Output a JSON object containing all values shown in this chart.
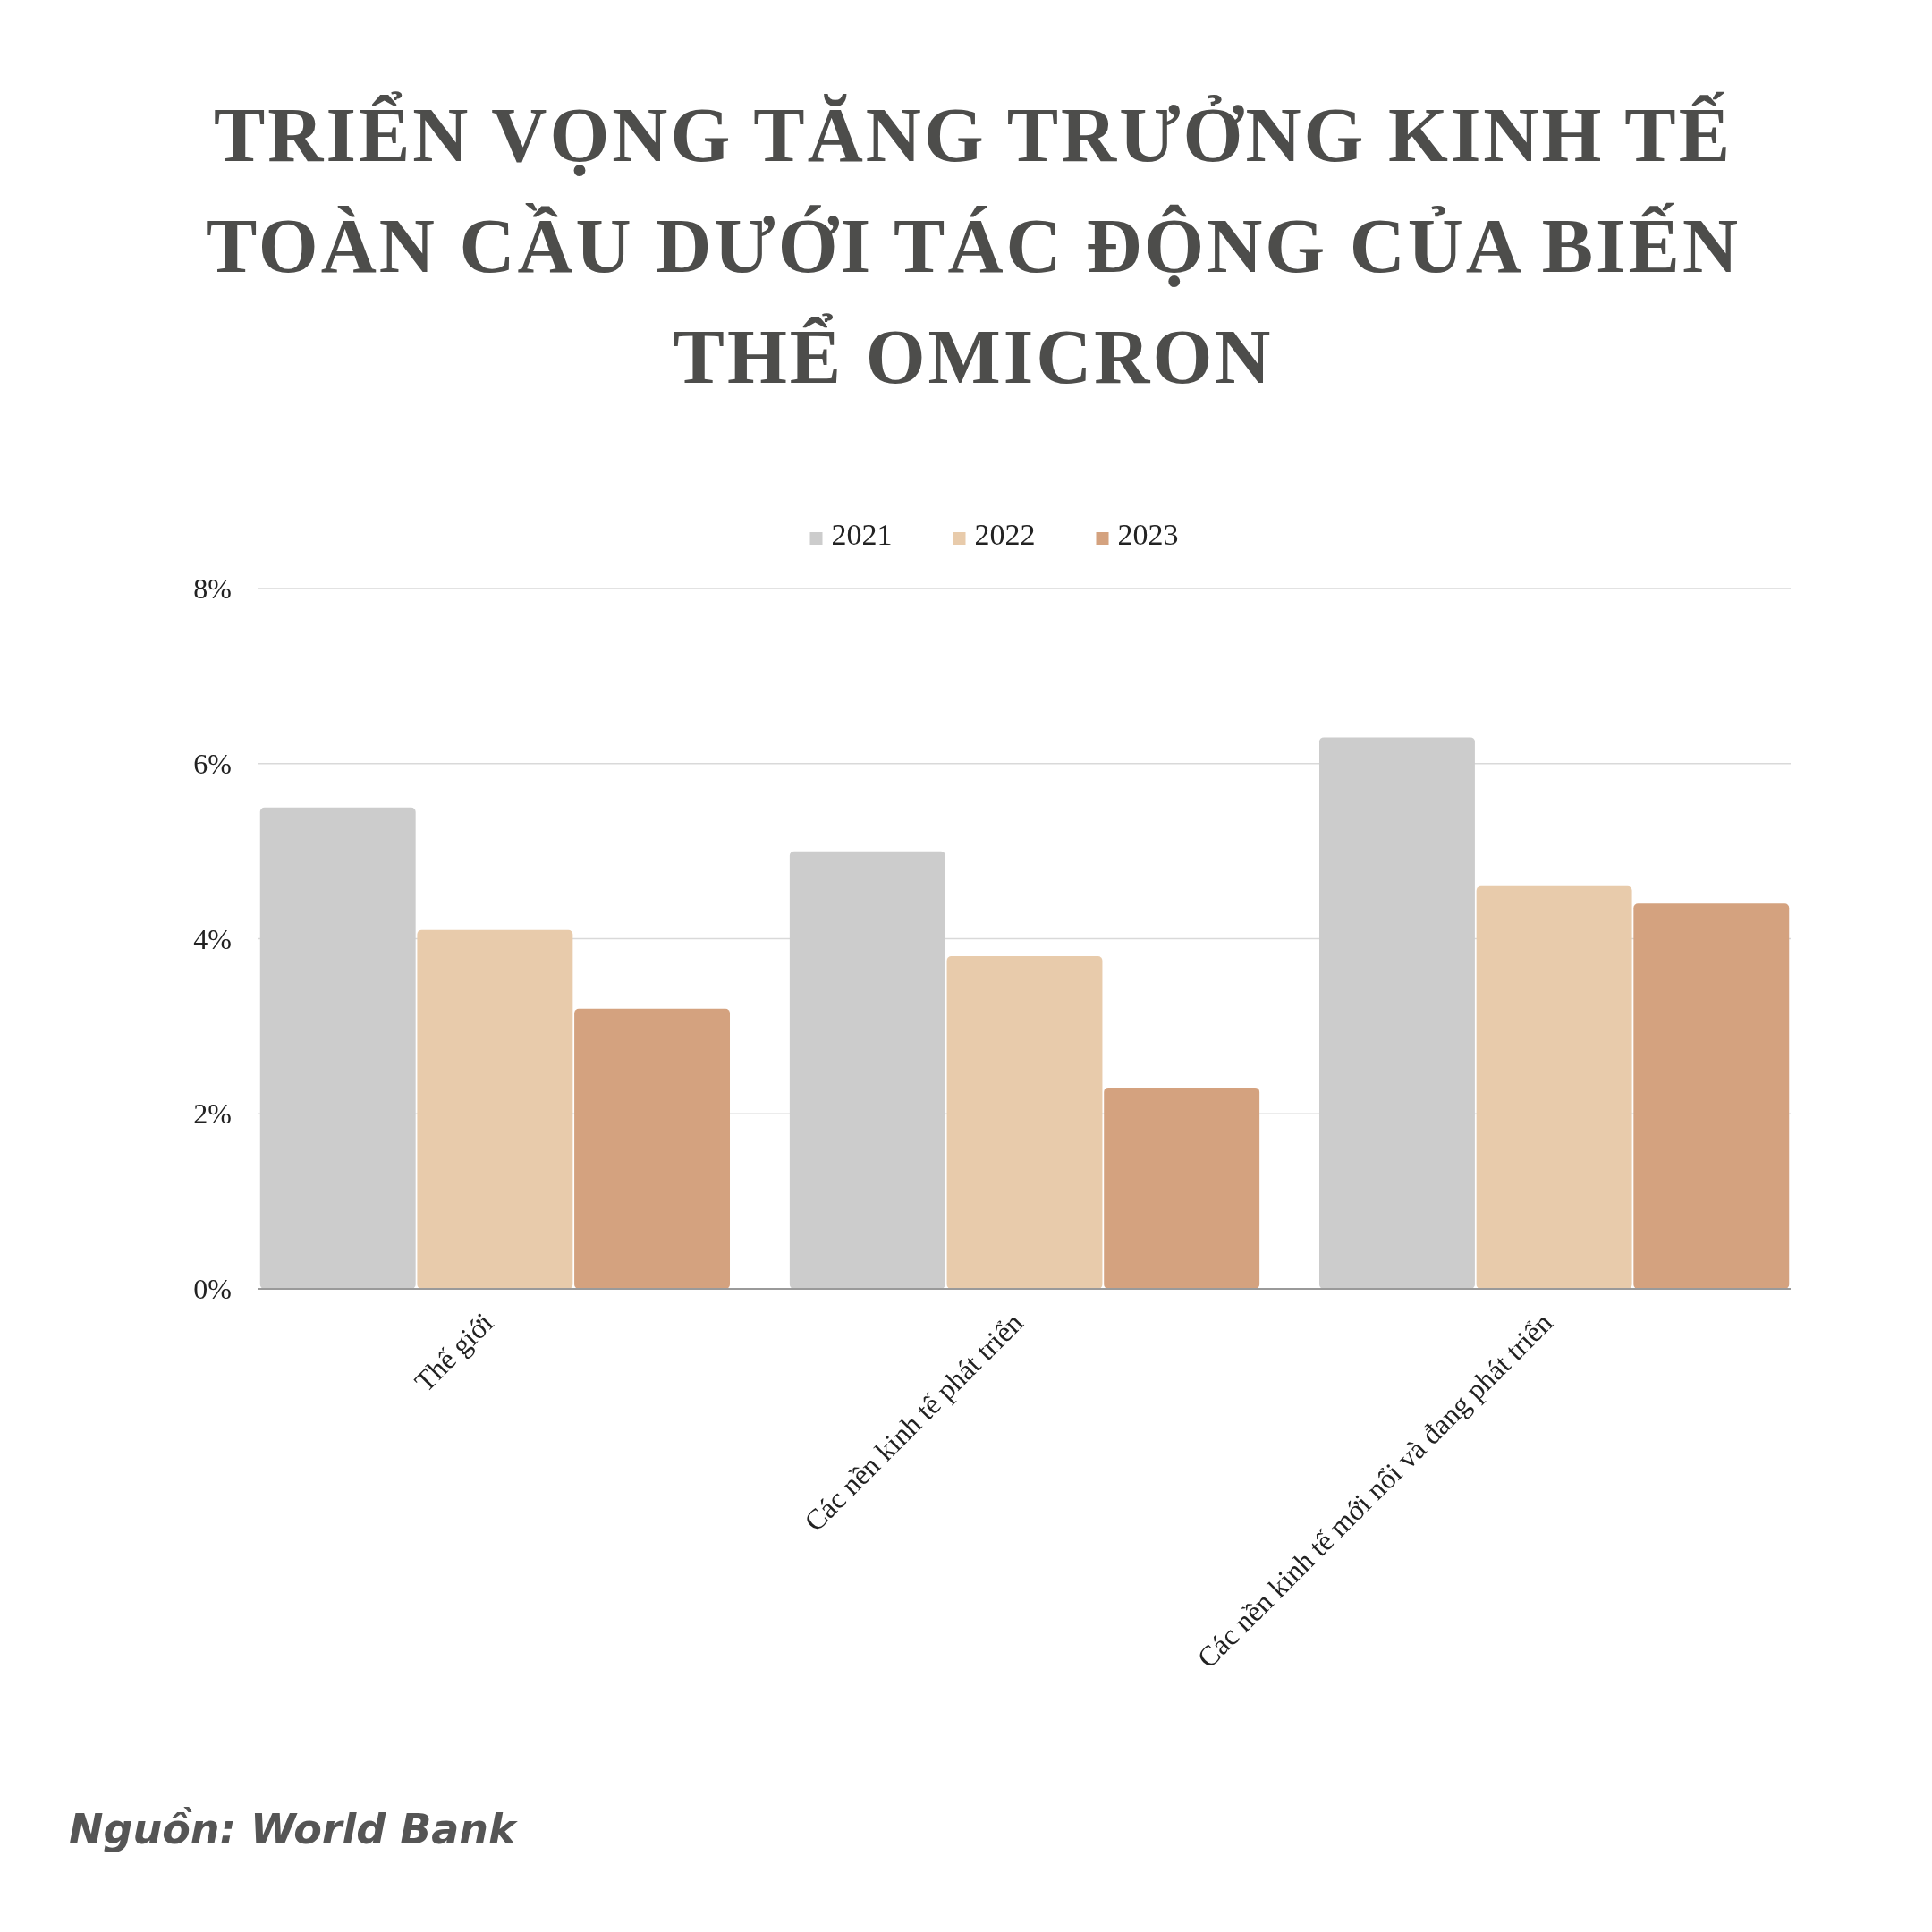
{
  "chart_data": {
    "type": "bar",
    "title": "TRIỂN VỌNG TĂNG TRƯỞNG KINH TẾ TOÀN CẦU DƯỚI TÁC ĐỘNG CỦA BIẾN THỂ OMICRON",
    "categories": [
      "Thế giới",
      "Các nền kinh tế phát triển",
      "Các nền kinh tế mới nổi và đang phát triển"
    ],
    "series": [
      {
        "name": "2021",
        "color": "#cccccc",
        "values": [
          5.5,
          5.0,
          6.3
        ]
      },
      {
        "name": "2022",
        "color": "#e8cbab",
        "values": [
          4.1,
          3.8,
          4.6
        ]
      },
      {
        "name": "2023",
        "color": "#d4a27f",
        "values": [
          3.2,
          2.3,
          4.4
        ]
      }
    ],
    "ylim": [
      0,
      8
    ],
    "yticks": [
      {
        "value": 0,
        "label": "0%"
      },
      {
        "value": 2,
        "label": "2%"
      },
      {
        "value": 4,
        "label": "4%"
      },
      {
        "value": 6,
        "label": "6%"
      },
      {
        "value": 8,
        "label": "8%"
      }
    ],
    "grid": "y",
    "legend": "top",
    "annotations": [
      "Nguồn: World Bank"
    ]
  }
}
